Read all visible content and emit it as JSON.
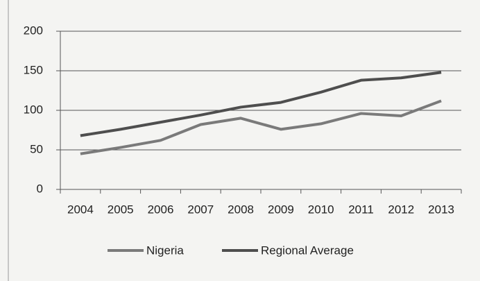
{
  "chart_data": {
    "type": "line",
    "categories": [
      "2004",
      "2005",
      "2006",
      "2007",
      "2008",
      "2009",
      "2010",
      "2011",
      "2012",
      "2013"
    ],
    "series": [
      {
        "name": "Nigeria",
        "color": "#7a7a7a",
        "values": [
          45,
          53,
          62,
          82,
          90,
          76,
          83,
          96,
          93,
          112
        ]
      },
      {
        "name": "Regional Average",
        "color": "#4e4e4e",
        "values": [
          68,
          76,
          85,
          94,
          104,
          110,
          123,
          138,
          141,
          148
        ]
      }
    ],
    "ylim": [
      0,
      200
    ],
    "yticks": [
      0,
      50,
      100,
      150,
      200
    ],
    "grid": true,
    "legend": "bottom"
  }
}
